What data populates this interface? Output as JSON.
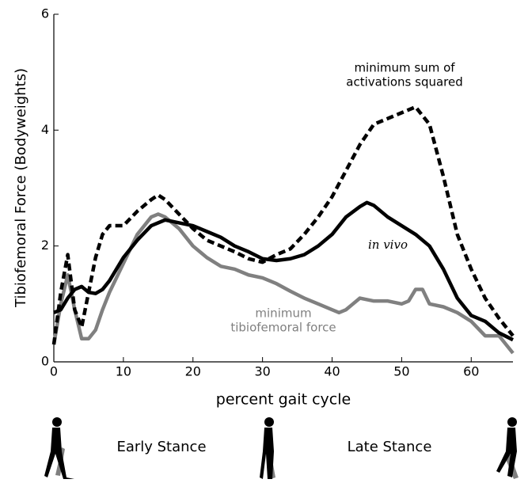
{
  "chart_data": {
    "type": "line",
    "xlabel": "percent gait cycle",
    "ylabel": "Tibiofemoral Force (Bodyweights)",
    "xlim": [
      0,
      66
    ],
    "xticks": [
      0,
      10,
      20,
      30,
      40,
      50,
      60
    ],
    "ylim": [
      0,
      6
    ],
    "yticks": [
      0,
      2,
      4,
      6
    ],
    "series": [
      {
        "name": "minimum sum of activations squared",
        "color": "#000000",
        "dash": true,
        "x": [
          0,
          1,
          2,
          3,
          4,
          5,
          6,
          7,
          8,
          9,
          10,
          12,
          14,
          15,
          16,
          18,
          20,
          22,
          24,
          26,
          28,
          30,
          32,
          34,
          36,
          38,
          40,
          42,
          44,
          46,
          48,
          50,
          52,
          54,
          56,
          58,
          60,
          62,
          64,
          66
        ],
        "values": [
          0.3,
          1.2,
          1.85,
          0.9,
          0.6,
          1.2,
          1.8,
          2.2,
          2.35,
          2.35,
          2.35,
          2.6,
          2.8,
          2.88,
          2.8,
          2.55,
          2.3,
          2.1,
          2.0,
          1.9,
          1.78,
          1.72,
          1.85,
          1.95,
          2.2,
          2.5,
          2.85,
          3.3,
          3.75,
          4.1,
          4.2,
          4.3,
          4.4,
          4.1,
          3.2,
          2.2,
          1.6,
          1.1,
          0.75,
          0.45
        ]
      },
      {
        "name": "in vivo",
        "color": "#000000",
        "dash": false,
        "x": [
          0,
          1,
          2,
          3,
          4,
          5,
          6,
          7,
          8,
          9,
          10,
          12,
          14,
          16,
          18,
          20,
          22,
          24,
          26,
          28,
          30,
          32,
          34,
          36,
          38,
          40,
          42,
          44,
          45,
          46,
          48,
          50,
          52,
          54,
          56,
          58,
          60,
          62,
          64,
          66
        ],
        "values": [
          0.85,
          0.9,
          1.1,
          1.25,
          1.3,
          1.2,
          1.18,
          1.25,
          1.4,
          1.6,
          1.8,
          2.1,
          2.35,
          2.45,
          2.4,
          2.35,
          2.25,
          2.15,
          2.0,
          1.9,
          1.78,
          1.75,
          1.78,
          1.85,
          2.0,
          2.2,
          2.5,
          2.68,
          2.75,
          2.7,
          2.5,
          2.35,
          2.2,
          2.0,
          1.6,
          1.1,
          0.8,
          0.7,
          0.5,
          0.38
        ]
      },
      {
        "name": "minimum tibiofemoral force",
        "color": "#808080",
        "dash": false,
        "x": [
          0,
          1,
          2,
          3,
          4,
          5,
          6,
          7,
          8,
          10,
          12,
          14,
          15,
          16,
          18,
          20,
          22,
          24,
          26,
          28,
          30,
          32,
          34,
          36,
          38,
          40,
          41,
          42,
          43,
          44,
          46,
          48,
          50,
          51,
          52,
          53,
          54,
          56,
          58,
          60,
          62,
          64,
          66
        ],
        "values": [
          0.3,
          1.0,
          1.5,
          0.9,
          0.4,
          0.4,
          0.55,
          0.9,
          1.2,
          1.7,
          2.2,
          2.5,
          2.55,
          2.5,
          2.3,
          2.0,
          1.8,
          1.65,
          1.6,
          1.5,
          1.45,
          1.35,
          1.22,
          1.1,
          1.0,
          0.9,
          0.85,
          0.9,
          1.0,
          1.1,
          1.05,
          1.05,
          1.0,
          1.05,
          1.25,
          1.25,
          1.0,
          0.95,
          0.85,
          0.7,
          0.45,
          0.45,
          0.15
        ]
      }
    ],
    "annotations": [
      [
        "minimum sum of",
        "activations squared"
      ],
      [
        "in vivo"
      ],
      [
        "minimum",
        "tibiofemoral force"
      ]
    ],
    "phases": [
      "Early Stance",
      "Late Stance"
    ]
  }
}
